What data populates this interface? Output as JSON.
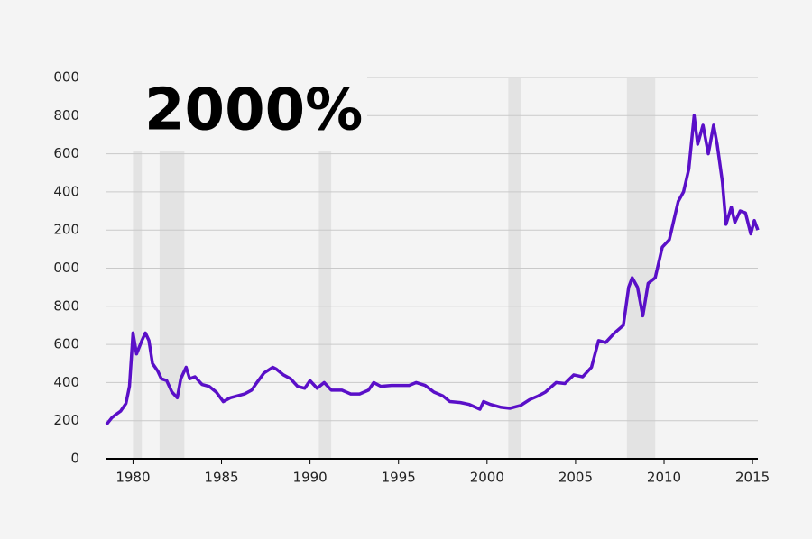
{
  "chart_data": {
    "type": "line",
    "annotation": "2000%",
    "series": [
      {
        "color": "#5a0fc8",
        "x": [
          1978.5,
          1978.8,
          1979.0,
          1979.3,
          1979.6,
          1979.8,
          1980.0,
          1980.2,
          1980.5,
          1980.7,
          1980.9,
          1981.1,
          1981.4,
          1981.6,
          1981.9,
          1982.2,
          1982.5,
          1982.7,
          1983.0,
          1983.2,
          1983.5,
          1983.9,
          1984.3,
          1984.7,
          1985.1,
          1985.5,
          1985.9,
          1986.3,
          1986.7,
          1987.0,
          1987.4,
          1987.9,
          1988.1,
          1988.5,
          1988.9,
          1989.3,
          1989.7,
          1990.0,
          1990.4,
          1990.8,
          1991.2,
          1991.8,
          1992.3,
          1992.8,
          1993.3,
          1993.6,
          1994.0,
          1994.6,
          1995.0,
          1995.6,
          1996.0,
          1996.5,
          1997.0,
          1997.5,
          1997.9,
          1998.5,
          1999.0,
          1999.6,
          1999.8,
          2000.2,
          2000.8,
          2001.3,
          2001.9,
          2002.4,
          2002.9,
          2003.3,
          2003.9,
          2004.4,
          2004.9,
          2005.4,
          2005.9,
          2006.3,
          2006.7,
          2007.2,
          2007.7,
          2008.0,
          2008.2,
          2008.5,
          2008.8,
          2009.1,
          2009.5,
          2009.9,
          2010.3,
          2010.8,
          2011.1,
          2011.4,
          2011.7,
          2011.9,
          2012.2,
          2012.5,
          2012.8,
          2013.0,
          2013.3,
          2013.5,
          2013.8,
          2014.0,
          2014.3,
          2014.6,
          2014.9,
          2015.1,
          2015.3
        ],
        "values": [
          180,
          215,
          230,
          250,
          290,
          380,
          660,
          550,
          620,
          660,
          620,
          500,
          460,
          420,
          410,
          350,
          320,
          420,
          480,
          420,
          430,
          390,
          380,
          350,
          300,
          320,
          330,
          340,
          360,
          400,
          450,
          480,
          470,
          440,
          420,
          380,
          370,
          410,
          370,
          400,
          360,
          360,
          340,
          340,
          360,
          400,
          380,
          385,
          385,
          385,
          400,
          385,
          350,
          330,
          300,
          295,
          285,
          260,
          300,
          285,
          270,
          265,
          280,
          310,
          330,
          350,
          400,
          395,
          440,
          430,
          480,
          620,
          610,
          660,
          700,
          900,
          950,
          900,
          750,
          920,
          950,
          1110,
          1150,
          1350,
          1400,
          1520,
          1800,
          1650,
          1750,
          1600,
          1750,
          1650,
          1450,
          1230,
          1320,
          1240,
          1300,
          1290,
          1180,
          1250,
          1200
        ]
      }
    ],
    "recessions": [
      [
        1980.0,
        1980.5
      ],
      [
        1981.5,
        1982.9
      ],
      [
        1990.5,
        1991.2
      ],
      [
        2001.2,
        2001.9
      ],
      [
        2007.9,
        2009.5
      ]
    ],
    "xlim": [
      1978.5,
      2015.3
    ],
    "xticks": [
      1980,
      1985,
      1990,
      1995,
      2000,
      2005,
      2010,
      2015
    ],
    "ylim": [
      0,
      2000
    ],
    "yticks": [
      0,
      200,
      400,
      600,
      800,
      {
        "value": 1000,
        "label": "000"
      },
      {
        "value": 1200,
        "label": "200"
      },
      {
        "value": 1400,
        "label": "400"
      },
      {
        "value": 1600,
        "label": "600"
      },
      {
        "value": 1800,
        "label": "800"
      },
      {
        "value": 2000,
        "label": "000"
      }
    ],
    "grid": true
  }
}
